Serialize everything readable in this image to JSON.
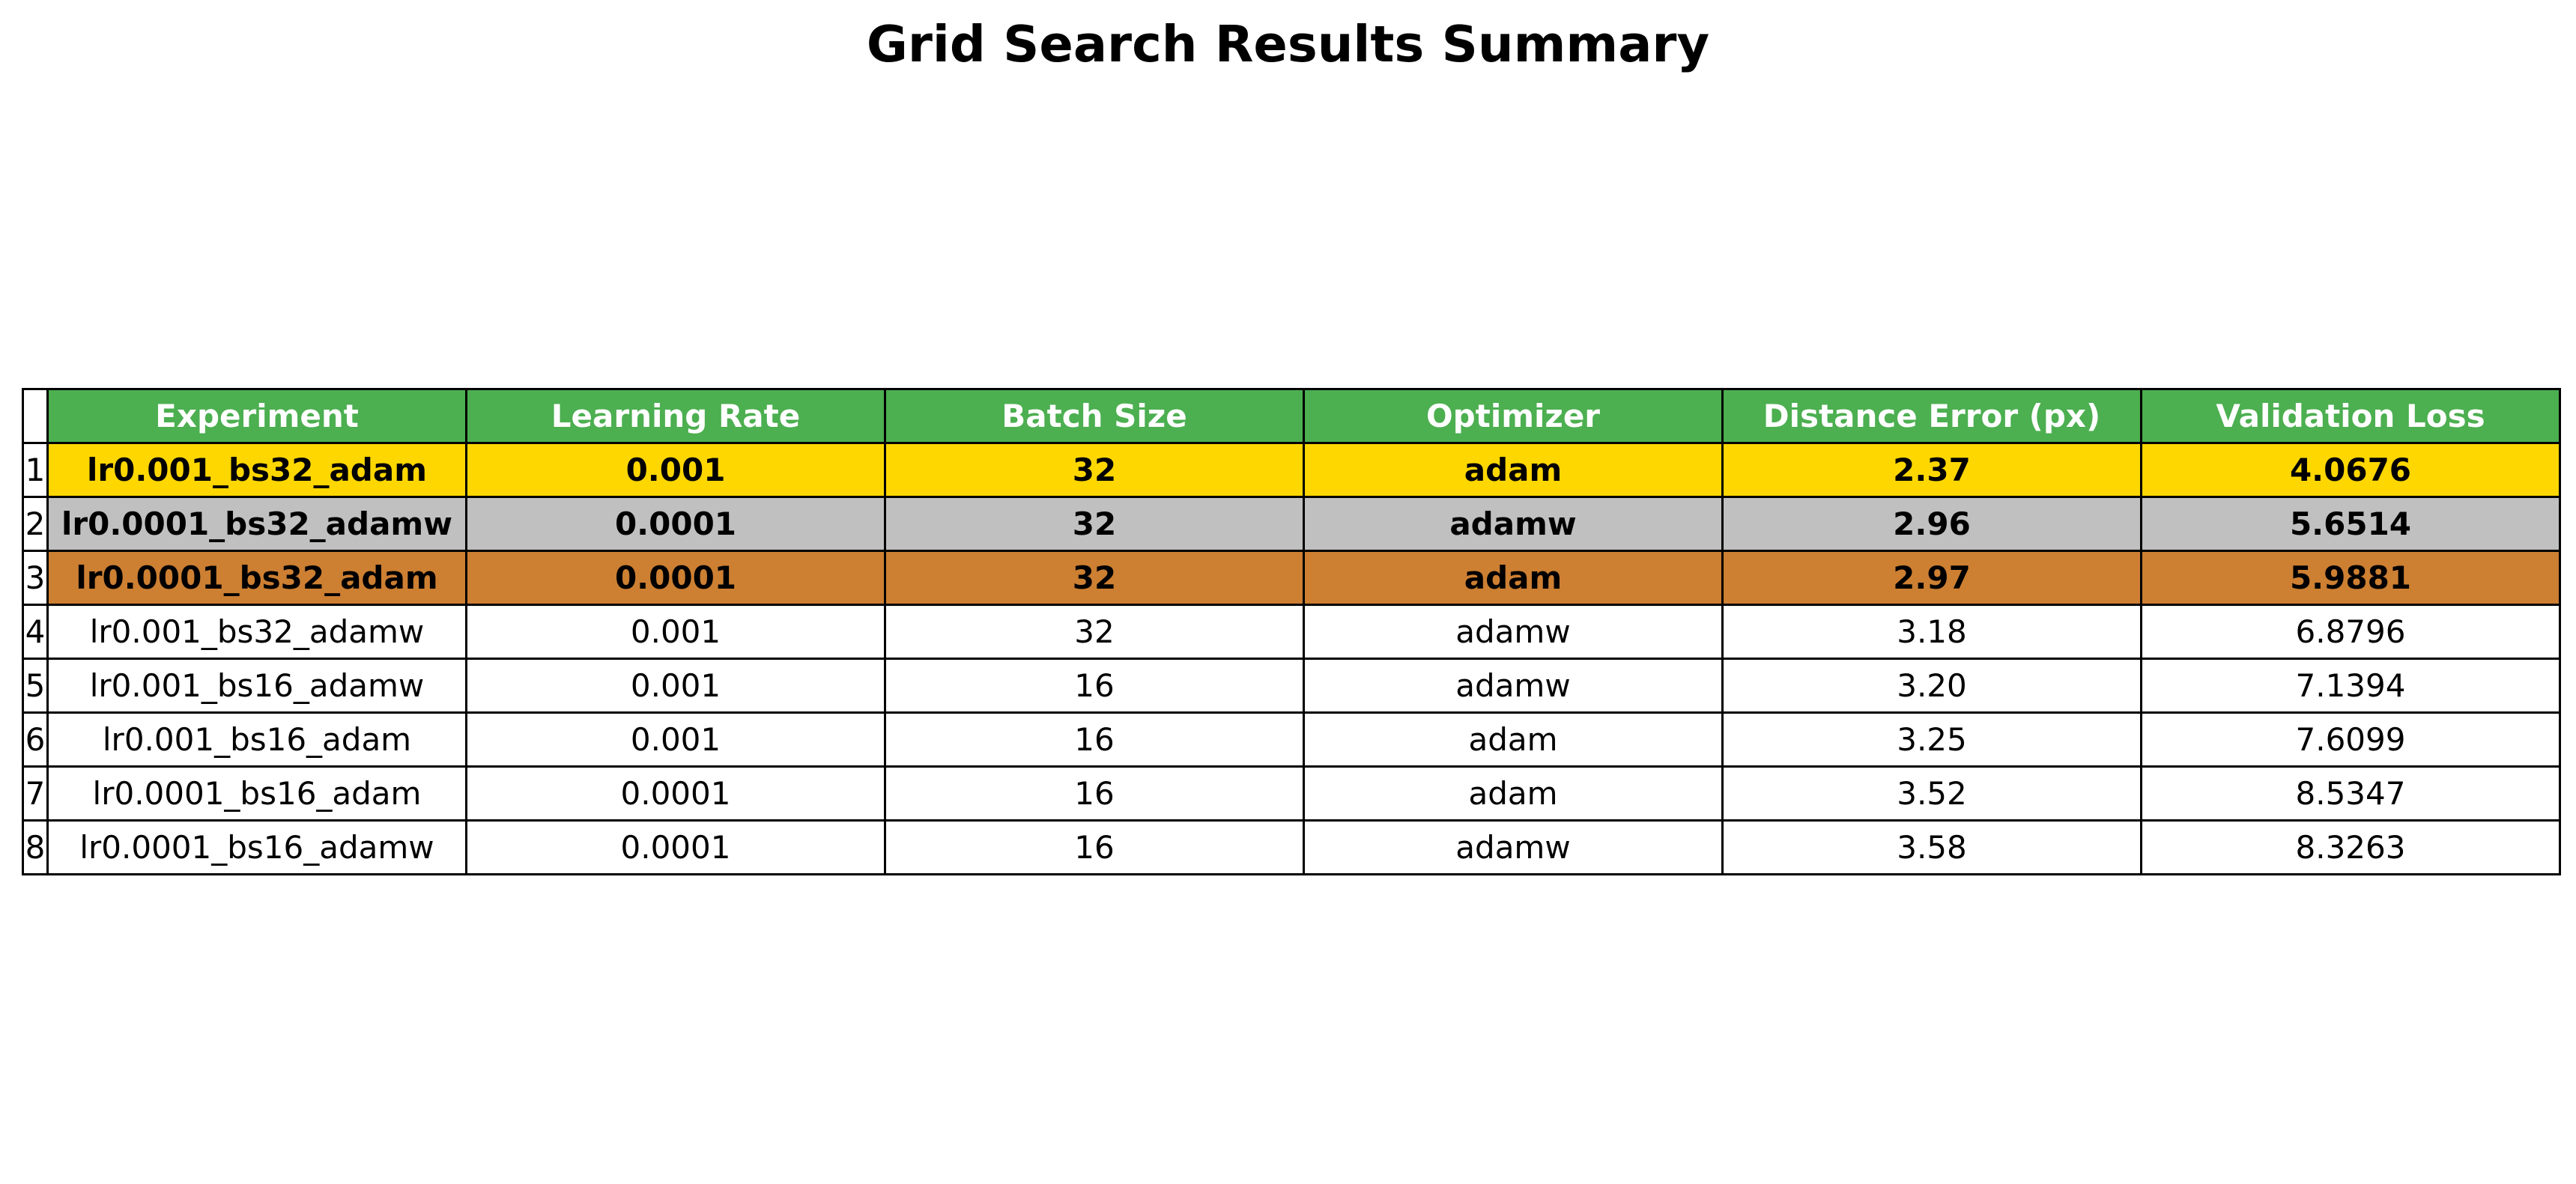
{
  "chart_data": {
    "type": "table",
    "title": "Grid Search Results Summary",
    "columns": [
      "Experiment",
      "Learning Rate",
      "Batch Size",
      "Optimizer",
      "Distance Error (px)",
      "Validation Loss"
    ],
    "row_labels": [
      "1",
      "2",
      "3",
      "4",
      "5",
      "6",
      "7",
      "8"
    ],
    "rows": [
      [
        "lr0.001_bs32_adam",
        "0.001",
        "32",
        "adam",
        "2.37",
        "4.0676"
      ],
      [
        "lr0.0001_bs32_adamw",
        "0.0001",
        "32",
        "adamw",
        "2.96",
        "5.6514"
      ],
      [
        "lr0.0001_bs32_adam",
        "0.0001",
        "32",
        "adam",
        "2.97",
        "5.9881"
      ],
      [
        "lr0.001_bs32_adamw",
        "0.001",
        "32",
        "adamw",
        "3.18",
        "6.8796"
      ],
      [
        "lr0.001_bs16_adamw",
        "0.001",
        "16",
        "adamw",
        "3.20",
        "7.1394"
      ],
      [
        "lr0.001_bs16_adam",
        "0.001",
        "16",
        "adam",
        "3.25",
        "7.6099"
      ],
      [
        "lr0.0001_bs16_adam",
        "0.0001",
        "16",
        "adam",
        "3.52",
        "8.5347"
      ],
      [
        "lr0.0001_bs16_adamw",
        "0.0001",
        "16",
        "adamw",
        "3.58",
        "8.3263"
      ]
    ],
    "colors": {
      "header_background": "#4caf50",
      "header_text": "#ffffff",
      "rank_1": "#ffd700",
      "rank_2": "#c0c0c0",
      "rank_3": "#cd7f32",
      "default_row": "#ffffff"
    }
  }
}
